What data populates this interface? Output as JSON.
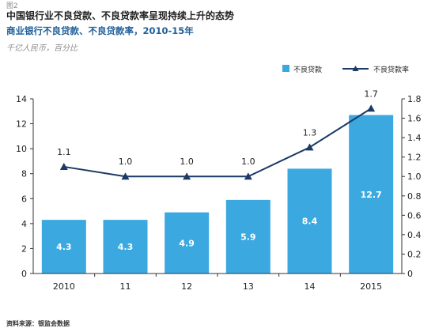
{
  "figure_label": "图2",
  "title": "中国银行业不良贷款、不良贷款率呈现持续上升的态势",
  "subtitle": "商业银行不良贷款、不良贷款率，2010-15年",
  "unit": "千亿人民币，百分比",
  "source": "资料来源：银监会数据",
  "colors": {
    "bar": "#3ba9e0",
    "line": "#1c3a66",
    "bar_label": "#ffffff",
    "axis": "#333333"
  },
  "chart_data": {
    "type": "bar",
    "categories": [
      "2010",
      "11",
      "12",
      "13",
      "14",
      "2015"
    ],
    "series": [
      {
        "name": "不良贷款",
        "type": "bar",
        "axis": "left",
        "values": [
          4.3,
          4.3,
          4.9,
          5.9,
          8.4,
          12.7
        ],
        "labels": [
          "4.3",
          "4.3",
          "4.9",
          "5.9",
          "8.4",
          "12.7"
        ]
      },
      {
        "name": "不良贷款率",
        "type": "line",
        "axis": "right",
        "marker": "triangle",
        "values": [
          1.1,
          1.0,
          1.0,
          1.0,
          1.3,
          1.7
        ],
        "labels": [
          "1.1",
          "1.0",
          "1.0",
          "1.0",
          "1.3",
          "1.7"
        ]
      }
    ],
    "ylim_left": [
      0,
      14
    ],
    "yticks_left": [
      "0",
      "2",
      "4",
      "6",
      "8",
      "10",
      "12",
      "14"
    ],
    "ylim_right": [
      0,
      1.8
    ],
    "yticks_right": [
      "0",
      "0.2",
      "0.4",
      "0.6",
      "0.8",
      "1.0",
      "1.2",
      "1.4",
      "1.6",
      "1.8"
    ],
    "legend_position": "top-right",
    "grid": false
  }
}
